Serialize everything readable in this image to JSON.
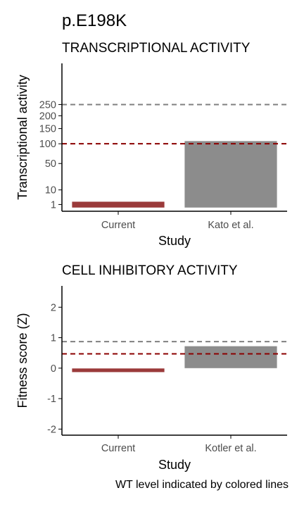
{
  "figure": {
    "title": "p.E198K",
    "footnote": "WT level indicated by colored lines"
  },
  "chart_data": [
    {
      "type": "bar",
      "title": "TRANSCRIPTIONAL ACTIVITY",
      "xlabel": "Study",
      "ylabel": "Transcriptional activity",
      "categories": [
        "Current",
        "Kato et al."
      ],
      "scale": "sqrt",
      "yticks": [
        1,
        10,
        50,
        100,
        150,
        200,
        250
      ],
      "ytick_labels": [
        "1",
        "10",
        "50",
        "100",
        "150",
        "200",
        "250"
      ],
      "ylim": [
        0,
        480
      ],
      "bars": [
        {
          "category": "Current",
          "low": 0.3,
          "high": 2.0,
          "color": "#9b3a3a"
        },
        {
          "category": "Kato et al.",
          "low": 0.3,
          "high": 108,
          "color": "#8c8c8c"
        }
      ],
      "reference_lines": [
        {
          "value": 250,
          "color": "#808080",
          "style": "dashed"
        },
        {
          "value": 100,
          "color": "#8b0000",
          "style": "dashed"
        }
      ],
      "grid": false,
      "legend": "none"
    },
    {
      "type": "bar",
      "title": "CELL INHIBITORY ACTIVITY",
      "xlabel": "Study",
      "ylabel": "Fitness score (Z)",
      "categories": [
        "Current",
        "Kotler et al."
      ],
      "scale": "linear",
      "yticks": [
        -2,
        -1,
        0,
        1,
        2
      ],
      "ytick_labels": [
        "-2",
        "-1",
        "0",
        "1",
        "2"
      ],
      "ylim": [
        -2.2,
        2.7
      ],
      "bars": [
        {
          "category": "Current",
          "low": -0.13,
          "high": -0.01,
          "color": "#9b3a3a"
        },
        {
          "category": "Kotler et al.",
          "low": 0.0,
          "high": 0.72,
          "color": "#8c8c8c"
        }
      ],
      "reference_lines": [
        {
          "value": 0.87,
          "color": "#808080",
          "style": "dashed"
        },
        {
          "value": 0.47,
          "color": "#8b0000",
          "style": "dashed"
        }
      ],
      "grid": false,
      "legend": "none"
    }
  ]
}
